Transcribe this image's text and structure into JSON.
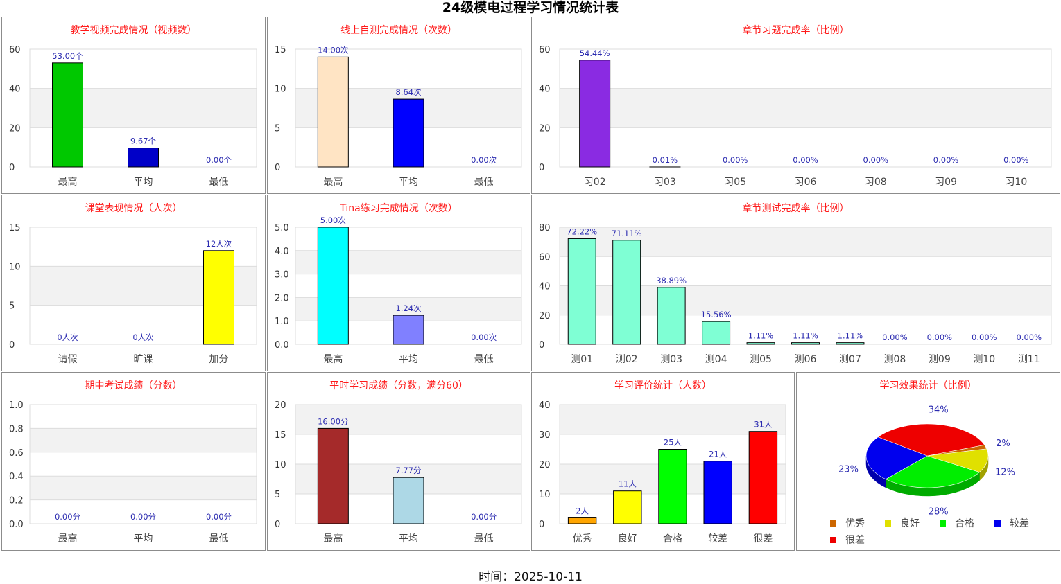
{
  "page_title": "24级模电过程学习情况统计表",
  "footer": "时间：2025-10-11",
  "chart_data": [
    {
      "id": "c1",
      "type": "bar",
      "title": "教学视频完成情况（视频数）",
      "categories": [
        "最高",
        "平均",
        "最低"
      ],
      "values": [
        53.0,
        9.67,
        0.0
      ],
      "labels": [
        "53.00个",
        "9.67个",
        "0.00个"
      ],
      "colors": [
        "#00c800",
        "#0000c8",
        "#0000c8"
      ],
      "ylim": [
        0,
        60
      ],
      "yticks": [
        "0",
        "20",
        "40",
        "60"
      ],
      "grid": true
    },
    {
      "id": "c2",
      "type": "bar",
      "title": "线上自测完成情况（次数）",
      "categories": [
        "最高",
        "平均",
        "最低"
      ],
      "values": [
        14.0,
        8.64,
        0.0
      ],
      "labels": [
        "14.00次",
        "8.64次",
        "0.00次"
      ],
      "colors": [
        "#ffe4c4",
        "#0000ff",
        "#0000ff"
      ],
      "ylim": [
        0,
        15
      ],
      "yticks": [
        "0",
        "5",
        "10",
        "15"
      ],
      "grid": true
    },
    {
      "id": "c3",
      "type": "bar",
      "title": "章节习题完成率（比例）",
      "categories": [
        "习02",
        "习03",
        "习05",
        "习06",
        "习08",
        "习09",
        "习10"
      ],
      "values": [
        54.44,
        0.01,
        0.0,
        0.0,
        0.0,
        0.0,
        0.0
      ],
      "labels": [
        "54.44%",
        "0.01%",
        "0.00%",
        "0.00%",
        "0.00%",
        "0.00%",
        "0.00%"
      ],
      "colors": [
        "#8a2be2",
        "#8a2be2",
        "#8a2be2",
        "#8a2be2",
        "#8a2be2",
        "#8a2be2",
        "#8a2be2"
      ],
      "ylim": [
        0,
        60
      ],
      "yticks": [
        "0",
        "20",
        "40",
        "60"
      ],
      "grid": true
    },
    {
      "id": "c4",
      "type": "bar",
      "title": "课堂表现情况（人次）",
      "categories": [
        "请假",
        "旷课",
        "加分"
      ],
      "values": [
        0,
        0,
        12
      ],
      "labels": [
        "0人次",
        "0人次",
        "12人次"
      ],
      "colors": [
        "#ffff00",
        "#ffff00",
        "#ffff00"
      ],
      "ylim": [
        0,
        15
      ],
      "yticks": [
        "0",
        "5",
        "10",
        "15"
      ],
      "grid": true
    },
    {
      "id": "c5",
      "type": "bar",
      "title": "Tina练习完成情况（次数）",
      "categories": [
        "最高",
        "平均",
        "最低"
      ],
      "values": [
        5.0,
        1.24,
        0.0
      ],
      "labels": [
        "5.00次",
        "1.24次",
        "0.00次"
      ],
      "colors": [
        "#00ffff",
        "#8080ff",
        "#8080ff"
      ],
      "ylim": [
        0,
        5
      ],
      "yticks": [
        "0.0",
        "1.0",
        "2.0",
        "3.0",
        "4.0",
        "5.0"
      ],
      "grid": true
    },
    {
      "id": "c6",
      "type": "bar",
      "title": "章节测试完成率（比例）",
      "categories": [
        "测01",
        "测02",
        "测03",
        "测04",
        "测05",
        "测06",
        "测07",
        "测08",
        "测09",
        "测10",
        "测11"
      ],
      "values": [
        72.22,
        71.11,
        38.89,
        15.56,
        1.11,
        1.11,
        1.11,
        0.0,
        0.0,
        0.0,
        0.0
      ],
      "labels": [
        "72.22%",
        "71.11%",
        "38.89%",
        "15.56%",
        "1.11%",
        "1.11%",
        "1.11%",
        "0.00%",
        "0.00%",
        "0.00%",
        "0.00%"
      ],
      "colors": [
        "#7fffd4",
        "#7fffd4",
        "#7fffd4",
        "#7fffd4",
        "#7fffd4",
        "#7fffd4",
        "#7fffd4",
        "#7fffd4",
        "#7fffd4",
        "#7fffd4",
        "#7fffd4"
      ],
      "ylim": [
        0,
        80
      ],
      "yticks": [
        "0",
        "20",
        "40",
        "60",
        "80"
      ],
      "grid": true
    },
    {
      "id": "c7",
      "type": "bar",
      "title": "期中考试成绩（分数）",
      "categories": [
        "最高",
        "平均",
        "最低"
      ],
      "values": [
        0.0,
        0.0,
        0.0
      ],
      "labels": [
        "0.00分",
        "0.00分",
        "0.00分"
      ],
      "colors": [
        "#a52a2a",
        "#add8e6",
        "#add8e6"
      ],
      "ylim": [
        0,
        1
      ],
      "yticks": [
        "0.0",
        "0.2",
        "0.4",
        "0.6",
        "0.8",
        "1.0"
      ],
      "grid": true
    },
    {
      "id": "c8",
      "type": "bar",
      "title": "平时学习成绩（分数，满分60）",
      "categories": [
        "最高",
        "平均",
        "最低"
      ],
      "values": [
        16.0,
        7.77,
        0.0
      ],
      "labels": [
        "16.00分",
        "7.77分",
        "0.00分"
      ],
      "colors": [
        "#a52a2a",
        "#add8e6",
        "#add8e6"
      ],
      "ylim": [
        0,
        20
      ],
      "yticks": [
        "0",
        "5",
        "10",
        "15",
        "20"
      ],
      "grid": true
    },
    {
      "id": "c9",
      "type": "bar",
      "title": "学习评价统计（人数）",
      "categories": [
        "优秀",
        "良好",
        "合格",
        "较差",
        "很差"
      ],
      "values": [
        2,
        11,
        25,
        21,
        31
      ],
      "labels": [
        "2人",
        "11人",
        "25人",
        "21人",
        "31人"
      ],
      "colors": [
        "#ffa500",
        "#ffff00",
        "#00ff00",
        "#0000ff",
        "#ff0000"
      ],
      "ylim": [
        0,
        40
      ],
      "yticks": [
        "0",
        "10",
        "20",
        "30",
        "40"
      ],
      "grid": true
    },
    {
      "id": "c10",
      "type": "pie",
      "title": "学习效果统计（比例）",
      "slices": [
        {
          "name": "优秀",
          "value": 2,
          "label": "2%",
          "color": "#cc6600"
        },
        {
          "name": "良好",
          "value": 12,
          "label": "12%",
          "color": "#e0e000"
        },
        {
          "name": "合格",
          "value": 28,
          "label": "28%",
          "color": "#00ee00"
        },
        {
          "name": "较差",
          "value": 23,
          "label": "23%",
          "color": "#0000ee"
        },
        {
          "name": "很差",
          "value": 34,
          "label": "34%",
          "color": "#ee0000"
        }
      ],
      "legend": "bottom"
    }
  ]
}
